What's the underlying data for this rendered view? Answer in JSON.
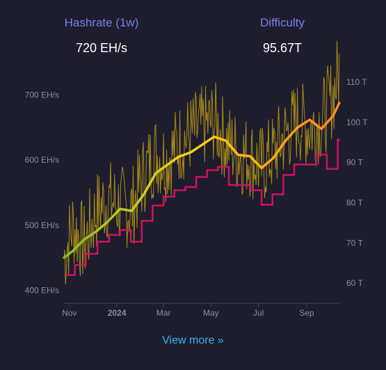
{
  "stats": [
    {
      "label": "Hashrate (1w)",
      "value": "720 EH/s"
    },
    {
      "label": "Difficulty",
      "value": "95.67T"
    }
  ],
  "view_more": "View more »",
  "chart_data": {
    "type": "line",
    "title": "",
    "x_range": [
      "2023-10-25",
      "2024-10-14"
    ],
    "x_ticks": [
      {
        "label": "Nov",
        "date": "2023-11-01",
        "bold": false
      },
      {
        "label": "2024",
        "date": "2024-01-01",
        "bold": true
      },
      {
        "label": "Mar",
        "date": "2024-03-01",
        "bold": false
      },
      {
        "label": "May",
        "date": "2024-05-01",
        "bold": false
      },
      {
        "label": "Jul",
        "date": "2024-07-01",
        "bold": false
      },
      {
        "label": "Sep",
        "date": "2024-09-01",
        "bold": false
      }
    ],
    "y_left": {
      "unit": "EH/s",
      "range": [
        380,
        720
      ],
      "ticks": [
        400,
        500,
        600,
        700
      ],
      "tick_labels": [
        "400 EH/s",
        "500 EH/s",
        "600 EH/s",
        "700 EH/s"
      ]
    },
    "y_right": {
      "unit": "T",
      "range": [
        55,
        110
      ],
      "ticks": [
        60,
        70,
        80,
        90,
        100,
        110
      ],
      "tick_labels": [
        "60 T",
        "70 T",
        "80 T",
        "90 T",
        "100 T",
        "110 T"
      ]
    },
    "grid": false,
    "legend": "none",
    "colors": {
      "daily_hashrate": "#d9b010",
      "avg_low": "#7dc322",
      "avg_high": "#ff8a1c",
      "difficulty": "#d4125e"
    },
    "series": [
      {
        "name": "",
        "role": "daily_hashrate",
        "axis": "left",
        "points": [
          [
            "2023-10-25",
            450
          ],
          [
            "2023-11-05",
            500
          ],
          [
            "2023-11-20",
            470
          ],
          [
            "2023-12-05",
            520
          ],
          [
            "2023-12-20",
            540
          ],
          [
            "2024-01-05",
            530
          ],
          [
            "2024-01-20",
            525
          ],
          [
            "2024-02-05",
            580
          ],
          [
            "2024-02-20",
            610
          ],
          [
            "2024-03-05",
            600
          ],
          [
            "2024-03-20",
            625
          ],
          [
            "2024-04-05",
            640
          ],
          [
            "2024-04-20",
            650
          ],
          [
            "2024-05-05",
            660
          ],
          [
            "2024-05-20",
            630
          ],
          [
            "2024-06-05",
            610
          ],
          [
            "2024-06-20",
            605
          ],
          [
            "2024-07-05",
            590
          ],
          [
            "2024-07-20",
            610
          ],
          [
            "2024-08-05",
            640
          ],
          [
            "2024-08-20",
            660
          ],
          [
            "2024-09-05",
            650
          ],
          [
            "2024-09-20",
            660
          ],
          [
            "2024-10-05",
            700
          ],
          [
            "2024-10-13",
            740
          ]
        ]
      },
      {
        "name": "",
        "role": "hashrate_average",
        "axis": "left",
        "points": [
          [
            "2023-10-25",
            450
          ],
          [
            "2023-11-05",
            460
          ],
          [
            "2023-11-20",
            478
          ],
          [
            "2023-12-05",
            490
          ],
          [
            "2023-12-20",
            505
          ],
          [
            "2024-01-05",
            525
          ],
          [
            "2024-01-20",
            522
          ],
          [
            "2024-02-05",
            548
          ],
          [
            "2024-02-20",
            580
          ],
          [
            "2024-03-05",
            592
          ],
          [
            "2024-03-20",
            605
          ],
          [
            "2024-04-05",
            612
          ],
          [
            "2024-04-20",
            624
          ],
          [
            "2024-05-05",
            636
          ],
          [
            "2024-05-20",
            630
          ],
          [
            "2024-06-05",
            608
          ],
          [
            "2024-06-20",
            606
          ],
          [
            "2024-07-05",
            588
          ],
          [
            "2024-07-20",
            603
          ],
          [
            "2024-08-05",
            630
          ],
          [
            "2024-08-20",
            650
          ],
          [
            "2024-09-05",
            662
          ],
          [
            "2024-09-20",
            648
          ],
          [
            "2024-10-05",
            668
          ],
          [
            "2024-10-13",
            688
          ]
        ]
      },
      {
        "name": "",
        "role": "difficulty",
        "axis": "right",
        "step": true,
        "points": [
          [
            "2023-10-25",
            62
          ],
          [
            "2023-11-08",
            64.5
          ],
          [
            "2023-11-22",
            67.3
          ],
          [
            "2023-12-07",
            70.3
          ],
          [
            "2023-12-22",
            72
          ],
          [
            "2024-01-05",
            73.2
          ],
          [
            "2024-01-19",
            70.3
          ],
          [
            "2024-02-02",
            75.5
          ],
          [
            "2024-02-16",
            79.3
          ],
          [
            "2024-03-01",
            81.5
          ],
          [
            "2024-03-15",
            83.1
          ],
          [
            "2024-03-29",
            83.9
          ],
          [
            "2024-04-12",
            86.4
          ],
          [
            "2024-04-26",
            88.1
          ],
          [
            "2024-05-10",
            88.9
          ],
          [
            "2024-05-24",
            84.4
          ],
          [
            "2024-06-07",
            84.4
          ],
          [
            "2024-06-21",
            83.1
          ],
          [
            "2024-07-05",
            79.5
          ],
          [
            "2024-07-19",
            82.1
          ],
          [
            "2024-08-02",
            86.9
          ],
          [
            "2024-08-16",
            89.5
          ],
          [
            "2024-08-30",
            89.5
          ],
          [
            "2024-09-13",
            92.0
          ],
          [
            "2024-09-27",
            88.4
          ],
          [
            "2024-10-11",
            95.67
          ]
        ]
      }
    ]
  }
}
